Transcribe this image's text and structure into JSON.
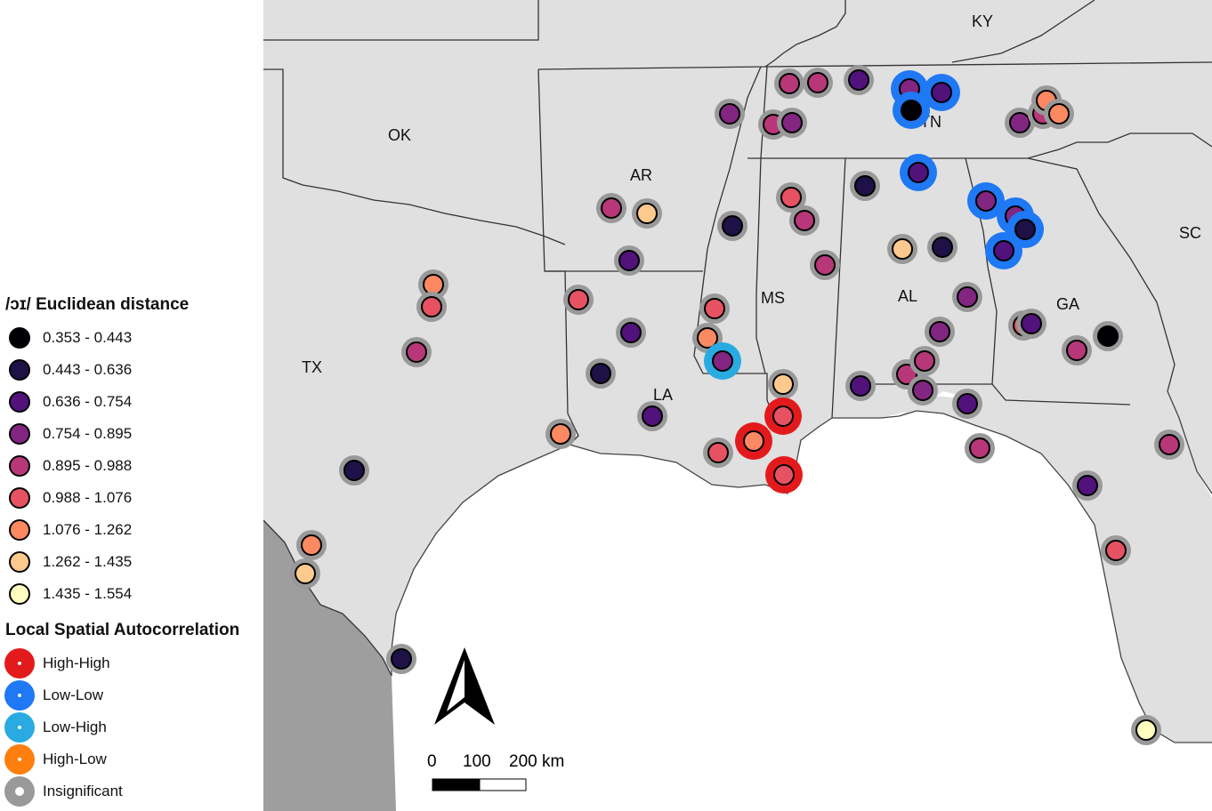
{
  "legend": {
    "distance_title": "/ɔɪ/ Euclidean distance",
    "distance_classes": [
      {
        "label": "0.353 - 0.443",
        "color": "#000004"
      },
      {
        "label": "0.443 - 0.636",
        "color": "#1d1147"
      },
      {
        "label": "0.636 - 0.754",
        "color": "#51127c"
      },
      {
        "label": "0.754 - 0.895",
        "color": "#822681"
      },
      {
        "label": "0.895 - 0.988",
        "color": "#b73779"
      },
      {
        "label": "0.988 - 1.076",
        "color": "#e75263"
      },
      {
        "label": "1.076 - 1.262",
        "color": "#fc8961"
      },
      {
        "label": "1.262 - 1.435",
        "color": "#fec98d"
      },
      {
        "label": "1.435 - 1.554",
        "color": "#fcfdbf"
      }
    ],
    "lisa_title": "Local Spatial Autocorrelation",
    "lisa_classes": [
      {
        "label": "High-High",
        "color": "#e31a1c"
      },
      {
        "label": "Low-Low",
        "color": "#1f78f4"
      },
      {
        "label": "Low-High",
        "color": "#29abe2"
      },
      {
        "label": "High-Low",
        "color": "#ff7f0e"
      },
      {
        "label": "Insignificant",
        "color": "#999999"
      }
    ]
  },
  "map": {
    "colors": {
      "land": "#e0e0e0",
      "mexico": "#9e9e9e",
      "water": "#ffffff",
      "border": "#333333"
    },
    "states": [
      "KY",
      "OK",
      "AR",
      "TN",
      "MS",
      "AL",
      "GA",
      "SC",
      "TX",
      "LA"
    ],
    "scale_bar": {
      "labels": [
        "0",
        "100",
        "200 km"
      ]
    },
    "north_arrow": "north-arrow-icon"
  }
}
